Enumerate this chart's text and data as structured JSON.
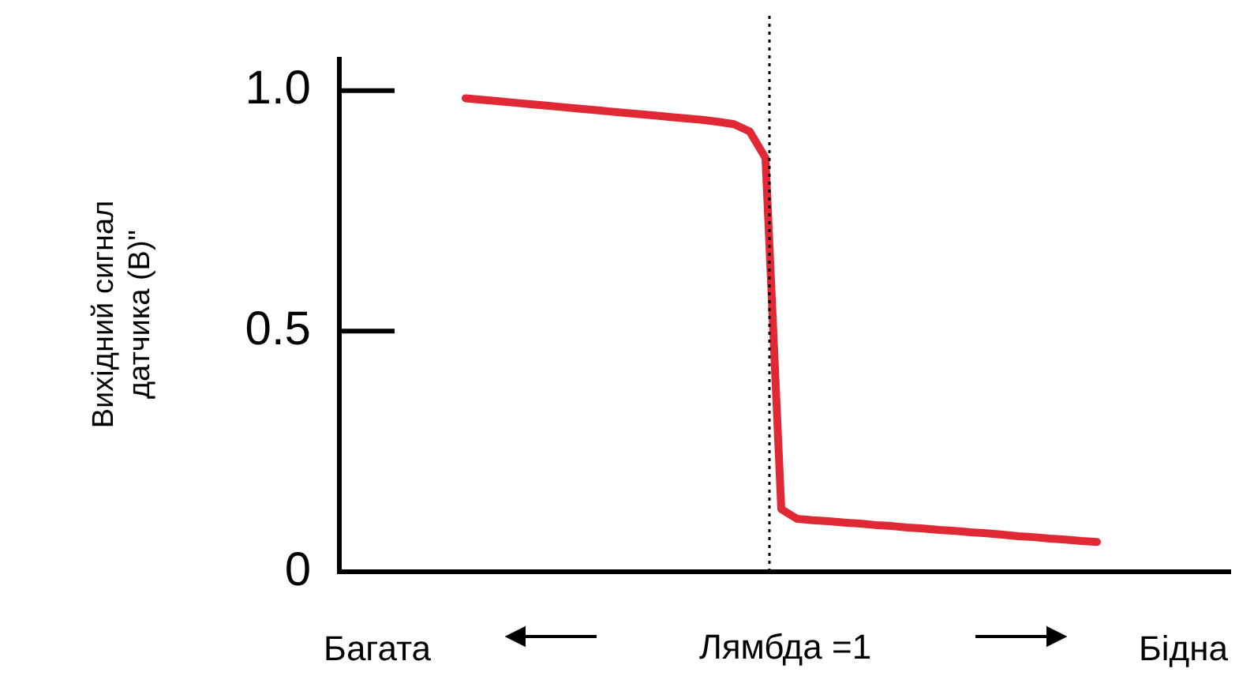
{
  "chart_data": {
    "type": "line",
    "ylabel": "Вихідний сигнал датчика (В)\"",
    "xlabel": "Лямбда =1",
    "annotations": [
      "Багата",
      "Бідна"
    ],
    "categories": [
      null,
      null,
      null,
      null,
      null,
      null,
      null,
      null,
      null,
      null,
      null,
      null,
      null,
      null,
      null,
      null,
      null,
      null,
      null,
      null,
      null,
      null,
      null,
      null,
      null,
      null,
      null,
      null,
      null,
      null,
      null,
      null,
      null,
      null,
      null,
      null,
      null,
      null,
      null,
      null,
      null
    ],
    "series": [
      {
        "color": "#e02935",
        "values": [
          0.984,
          0.981,
          0.978,
          0.975,
          0.972,
          0.969,
          0.966,
          0.963,
          0.96,
          0.957,
          0.954,
          0.951,
          0.948,
          0.945,
          0.942,
          0.939,
          0.935,
          0.93,
          0.915,
          0.86,
          0.13,
          0.11,
          0.107,
          0.105,
          0.102,
          0.1,
          0.097,
          0.095,
          0.092,
          0.09,
          0.087,
          0.085,
          0.082,
          0.08,
          0.077,
          0.074,
          0.072,
          0.069,
          0.067,
          0.064,
          0.062
        ]
      }
    ],
    "ylim": [
      0,
      1.07
    ],
    "yticks": [
      0,
      {
        "value": 0.5,
        "label": "0.5"
      },
      {
        "value": 1,
        "label": "1.0"
      }
    ],
    "tick_labels": "y",
    "grid": false,
    "legend": false,
    "marker": "none",
    "line_style": "solid"
  }
}
